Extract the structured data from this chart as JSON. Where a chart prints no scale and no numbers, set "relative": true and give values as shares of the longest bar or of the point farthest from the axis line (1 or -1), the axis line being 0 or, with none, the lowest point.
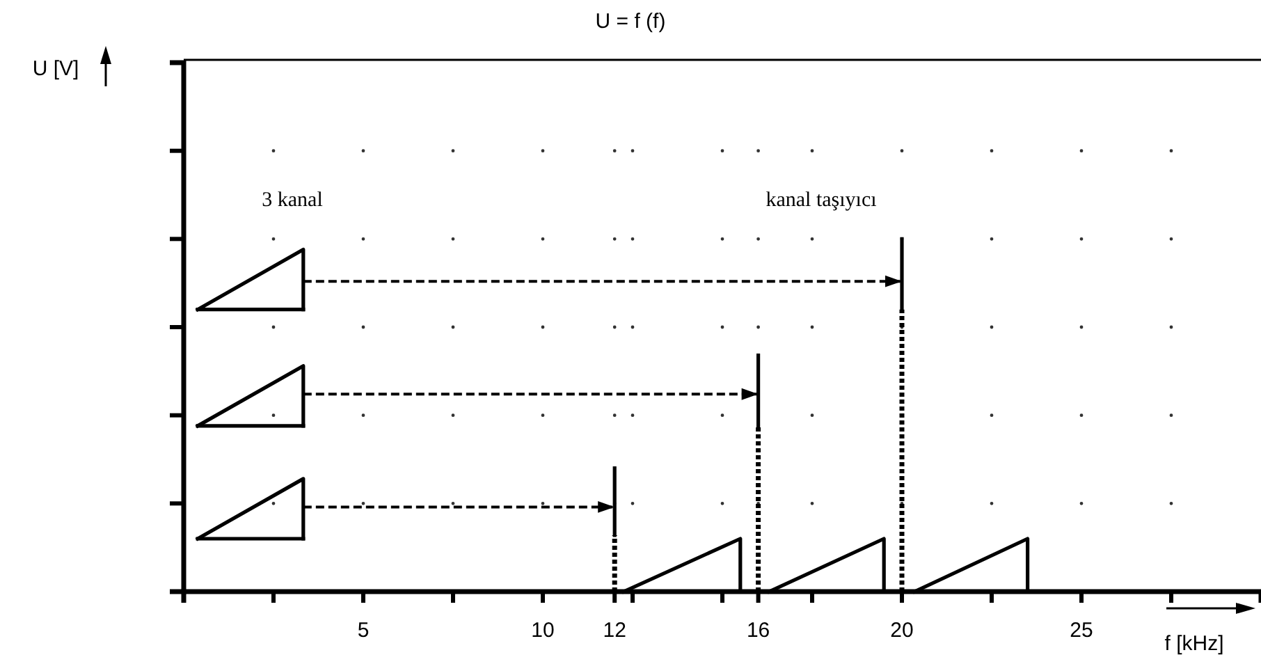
{
  "chart_data": {
    "type": "line",
    "title": "U = f (f)",
    "xlabel": "f [kHz]",
    "relative": true,
    "xlim": [
      0,
      30
    ],
    "xticks": [
      {
        "value": 2.5,
        "label": null
      },
      5,
      {
        "value": 7.5,
        "label": null
      },
      10,
      12,
      {
        "value": 12.5,
        "label": null
      },
      {
        "value": 15,
        "label": null
      },
      16,
      {
        "value": 17.5,
        "label": null
      },
      20,
      {
        "value": 22.5,
        "label": null
      },
      25,
      {
        "value": 27.5,
        "label": null
      }
    ],
    "grid": true,
    "marker": "none",
    "annotations": [
      "3 kanal",
      "kanal taşıyıcı",
      "U [V]"
    ],
    "series": [
      {
        "color": "#000000",
        "line_style": "solid",
        "x": [
          0.39,
          3.33,
          3.33
        ],
        "values": [
          0.15,
          0.32,
          0.15
        ]
      },
      {
        "color": "#000000",
        "line_style": "solid",
        "x": [
          0.39,
          3.33
        ],
        "values": [
          0.15,
          0.15
        ]
      },
      {
        "color": "#000000",
        "line_style": "solid",
        "x": [
          0.39,
          3.33,
          3.33
        ],
        "values": [
          0.47,
          0.64,
          0.47
        ]
      },
      {
        "color": "#000000",
        "line_style": "solid",
        "x": [
          0.39,
          3.33
        ],
        "values": [
          0.47,
          0.47
        ]
      },
      {
        "color": "#000000",
        "line_style": "solid",
        "x": [
          0.39,
          3.33,
          3.33
        ],
        "values": [
          0.8,
          0.97,
          0.8
        ]
      },
      {
        "color": "#000000",
        "line_style": "solid",
        "x": [
          0.39,
          3.33
        ],
        "values": [
          0.8,
          0.8
        ]
      },
      {
        "color": "#000000",
        "line_style": "dashed",
        "x": [
          3.33,
          12
        ],
        "values": [
          0.24,
          0.24
        ]
      },
      {
        "color": "#000000",
        "line_style": "dashed",
        "x": [
          3.33,
          16
        ],
        "values": [
          0.56,
          0.56
        ]
      },
      {
        "color": "#000000",
        "line_style": "dashed",
        "x": [
          3.33,
          20
        ],
        "values": [
          0.88,
          0.88
        ]
      },
      {
        "color": "#000000",
        "line_style": "dotted",
        "x": [
          12,
          12
        ],
        "values": [
          0,
          0.16
        ]
      },
      {
        "color": "#000000",
        "line_style": "solid",
        "x": [
          12,
          12
        ],
        "values": [
          0.16,
          0.35
        ]
      },
      {
        "color": "#000000",
        "line_style": "dotted",
        "x": [
          16,
          16
        ],
        "values": [
          0,
          0.47
        ]
      },
      {
        "color": "#000000",
        "line_style": "solid",
        "x": [
          16,
          16
        ],
        "values": [
          0.47,
          0.67
        ]
      },
      {
        "color": "#000000",
        "line_style": "dotted",
        "x": [
          20,
          20
        ],
        "values": [
          0,
          0.8
        ]
      },
      {
        "color": "#000000",
        "line_style": "solid",
        "x": [
          20,
          20
        ],
        "values": [
          0.8,
          1
        ]
      },
      {
        "color": "#000000",
        "line_style": "solid",
        "x": [
          12.25,
          15.5,
          15.5
        ],
        "values": [
          0,
          0.15,
          0
        ]
      },
      {
        "color": "#000000",
        "line_style": "solid",
        "x": [
          16.3,
          19.5,
          19.5
        ],
        "values": [
          0,
          0.15,
          0
        ]
      },
      {
        "color": "#000000",
        "line_style": "solid",
        "x": [
          20.35,
          23.5,
          23.5
        ],
        "values": [
          0,
          0.15,
          0
        ]
      }
    ]
  }
}
